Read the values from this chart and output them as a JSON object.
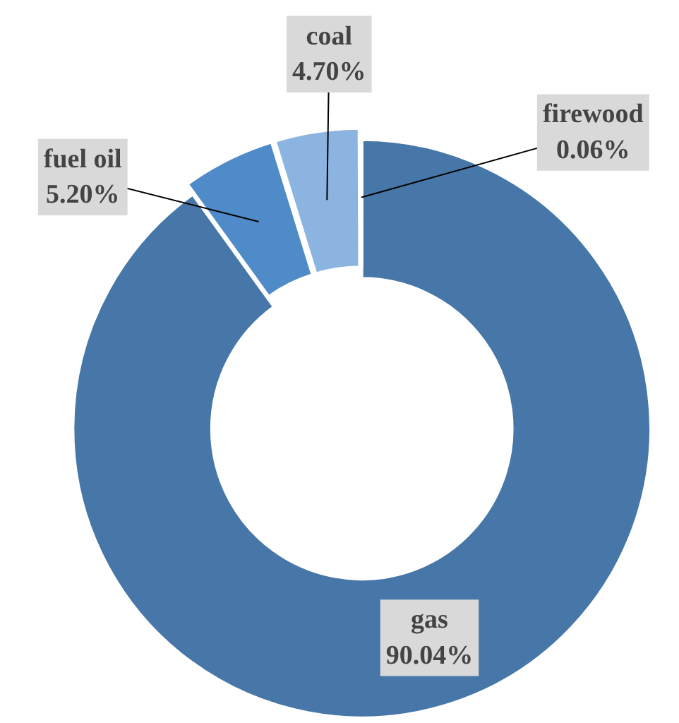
{
  "chart_data": {
    "type": "donut",
    "categories": [
      "gas",
      "fuel oil",
      "coal",
      "firewood"
    ],
    "values": [
      90.04,
      5.2,
      4.7,
      0.06
    ],
    "value_labels": [
      "90.04%",
      "5.20%",
      "4.70%",
      "0.06%"
    ],
    "colors": [
      "#4677a8",
      "#4f8bc8",
      "#8cb4e0",
      "#c6d9f0"
    ]
  }
}
